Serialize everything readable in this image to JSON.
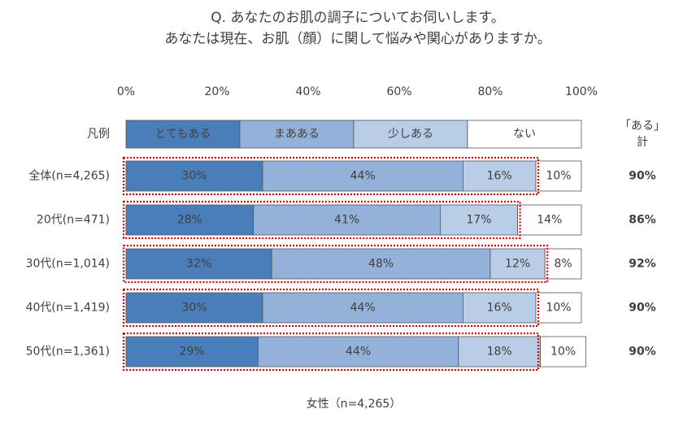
{
  "chart_data": {
    "type": "stacked_bar_100",
    "orientation": "horizontal",
    "title": [
      "Q. あなたのお肌の調子についてお伺いします。",
      "あなたは現在、お肌（顔）に関して悩みや関心がありますか。"
    ],
    "xlabel": "女性（n=4,265）",
    "legend_title": "凡例",
    "xlim": [
      0,
      100
    ],
    "xticks": [
      {
        "value": 0,
        "label": "0%"
      },
      {
        "value": 20,
        "label": "20%"
      },
      {
        "value": 40,
        "label": "40%"
      },
      {
        "value": 60,
        "label": "60%"
      },
      {
        "value": 80,
        "label": "80%"
      },
      {
        "value": 100,
        "label": "100%"
      }
    ],
    "grid": false,
    "categories": [
      "全体(n=4,265)",
      "20代(n=471)",
      "30代(n=1,014)",
      "40代(n=1,419)",
      "50代(n=1,361)"
    ],
    "series": [
      {
        "name": "とてもある",
        "color": "#4a7ebb",
        "label_color": "#ffffff",
        "values": [
          30,
          28,
          32,
          30,
          29
        ],
        "value_labels": [
          "30%",
          "28%",
          "32%",
          "30%",
          "29%"
        ]
      },
      {
        "name": "まあある",
        "color": "#93b1d9",
        "label_color": "#404040",
        "values": [
          44,
          41,
          48,
          44,
          44
        ],
        "value_labels": [
          "44%",
          "41%",
          "48%",
          "44%",
          "44%"
        ]
      },
      {
        "name": "少しある",
        "color": "#b9cde6",
        "label_color": "#404040",
        "values": [
          16,
          17,
          12,
          16,
          18
        ],
        "value_labels": [
          "16%",
          "17%",
          "12%",
          "16%",
          "18%"
        ]
      },
      {
        "name": "ない",
        "color": "#ffffff",
        "label_color": "#c0c0c0",
        "values": [
          10,
          14,
          8,
          10,
          10
        ],
        "value_labels": [
          "10%",
          "14%",
          "8%",
          "10%",
          "10%"
        ]
      }
    ],
    "totals": {
      "header": [
        "「ある」",
        "計"
      ],
      "color": "#e60000",
      "values": [
        90,
        86,
        92,
        90,
        90
      ],
      "value_labels": [
        "90%",
        "86%",
        "92%",
        "90%",
        "90%"
      ]
    }
  }
}
